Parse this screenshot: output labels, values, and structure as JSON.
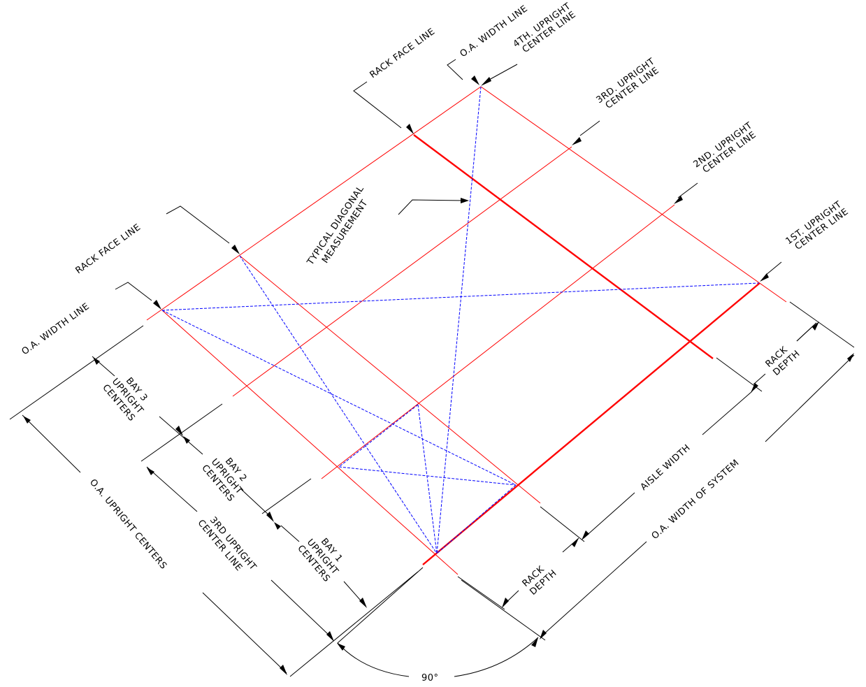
{
  "labels": {
    "oa_width_line_top": "O.A. WIDTH LINE",
    "rack_face_line_top": "RACK FACE LINE",
    "fourth_upright": [
      "4TH. UPRIGHT",
      "CENTER LINE"
    ],
    "third_upright_top": [
      "3RD. UPRIGHT",
      "CENTER LINE"
    ],
    "second_upright": [
      "2ND. UPRIGHT",
      "CENTER LINE"
    ],
    "first_upright": [
      "1ST. UPRIGHT",
      "CENTER LINE"
    ],
    "typical_diagonal": [
      "TYPICAL DIAGONAL",
      "MEASUREMENT"
    ],
    "rack_face_line_left": "RACK FACE LINE",
    "oa_width_line_left": "O.A. WIDTH LINE",
    "bay_3": [
      "BAY 3",
      "UPRIGHT",
      "CENTERS"
    ],
    "bay_2": [
      "BAY 2",
      "UPRIGHT",
      "CENTERS"
    ],
    "bay_1": [
      "BAY 1",
      "UPRIGHT",
      "CENTERS"
    ],
    "third_upright_bottom": [
      "3RD UPRIGHT",
      "CENTER LINE"
    ],
    "oa_upright_centers": "O.A. UPRIGHT CENTERS",
    "rack_depth_right": [
      "RACK",
      "DEPTH"
    ],
    "aisle_width": "AISLE WIDTH",
    "oa_width_of_system": "O.A. WIDTH OF SYSTEM",
    "rack_depth_bottom": [
      "RACK",
      "DEPTH"
    ],
    "angle": "90°"
  },
  "colors": {
    "grid_lines": "#ff0000",
    "diagonals": "#0000ff",
    "dimensions": "#000000"
  }
}
